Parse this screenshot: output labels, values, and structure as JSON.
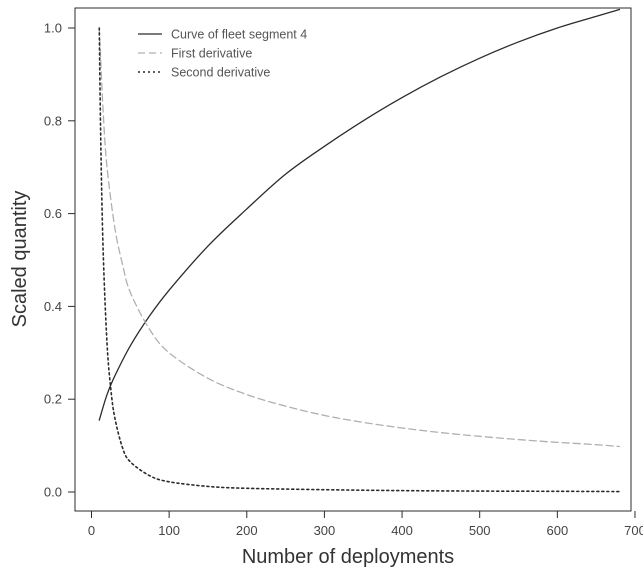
{
  "chart_data": {
    "type": "line",
    "title": "",
    "xlabel": "Number of deployments",
    "ylabel": "Scaled quantity",
    "xlim": [
      0,
      700
    ],
    "ylim": [
      0,
      1.05
    ],
    "xticks": [
      0,
      100,
      200,
      300,
      400,
      500,
      600,
      700
    ],
    "yticks": [
      0.0,
      0.2,
      0.4,
      0.6,
      0.8,
      1.0
    ],
    "xtick_labels": [
      "0",
      "100",
      "200",
      "300",
      "400",
      "500",
      "600",
      "700"
    ],
    "ytick_labels": [
      "0.0",
      "0.2",
      "0.4",
      "0.6",
      "0.8",
      "1.0"
    ],
    "grid": false,
    "legend_position": "top-left",
    "series": [
      {
        "name": "Curve of fleet segment 4",
        "style": "solid",
        "color": "#2b2b2b",
        "x": [
          10,
          20,
          30,
          50,
          75,
          100,
          150,
          200,
          250,
          300,
          350,
          400,
          450,
          500,
          550,
          600,
          650,
          680
        ],
        "y": [
          0.155,
          0.21,
          0.25,
          0.315,
          0.38,
          0.435,
          0.53,
          0.61,
          0.685,
          0.745,
          0.8,
          0.85,
          0.895,
          0.935,
          0.97,
          1.0,
          1.025,
          1.04
        ]
      },
      {
        "name": "First derivative",
        "style": "dashed",
        "color": "#b0b0b0",
        "x": [
          10,
          15,
          20,
          30,
          40,
          50,
          75,
          100,
          150,
          200,
          250,
          300,
          350,
          400,
          450,
          500,
          550,
          600,
          650,
          680
        ],
        "y": [
          1.0,
          0.82,
          0.7,
          0.57,
          0.49,
          0.43,
          0.35,
          0.3,
          0.245,
          0.21,
          0.185,
          0.165,
          0.15,
          0.138,
          0.128,
          0.12,
          0.113,
          0.107,
          0.102,
          0.098
        ]
      },
      {
        "name": "Second derivative",
        "style": "dotted",
        "color": "#2b2b2b",
        "x": [
          10,
          12,
          15,
          20,
          25,
          30,
          40,
          50,
          75,
          100,
          150,
          200,
          300,
          400,
          500,
          600,
          680
        ],
        "y": [
          1.0,
          0.75,
          0.52,
          0.32,
          0.22,
          0.16,
          0.095,
          0.065,
          0.035,
          0.022,
          0.012,
          0.008,
          0.005,
          0.003,
          0.002,
          0.0015,
          0.001
        ]
      }
    ]
  }
}
